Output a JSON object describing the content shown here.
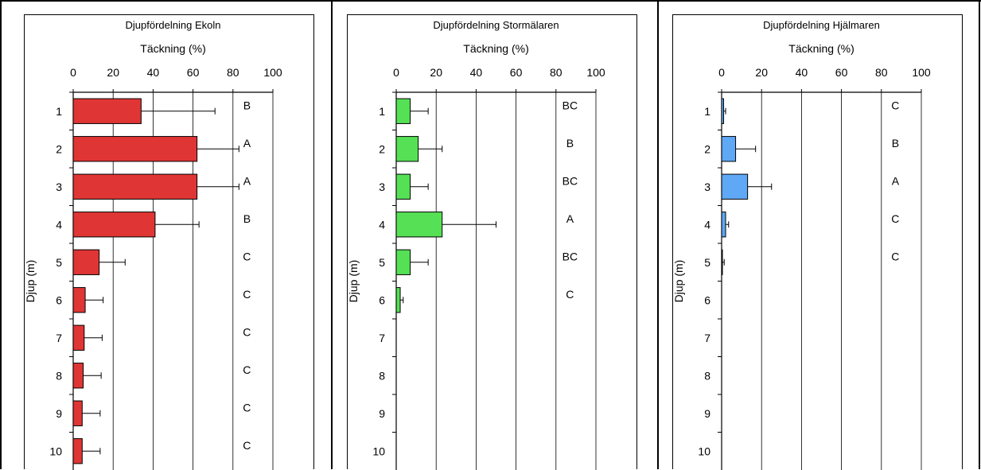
{
  "chart_data": [
    {
      "type": "bar",
      "orientation": "horizontal",
      "title": "Djupfördelning Ekoln",
      "xlabel": "Täckning (%)",
      "ylabel": "Djup (m)",
      "xlim": [
        0,
        100
      ],
      "x_ticks": [
        "0",
        "20",
        "40",
        "60",
        "80",
        "100"
      ],
      "categories": [
        "1",
        "2",
        "3",
        "4",
        "5",
        "6",
        "7",
        "8",
        "9",
        "10"
      ],
      "values": [
        34,
        62,
        62,
        41,
        13,
        6,
        5.5,
        5,
        4.5,
        4.5
      ],
      "errors": [
        37,
        21,
        21,
        22,
        13,
        9,
        9,
        9,
        9,
        9
      ],
      "letters": [
        "B",
        "A",
        "A",
        "B",
        "C",
        "C",
        "C",
        "C",
        "C",
        "C"
      ],
      "color": "#e03535",
      "grid": true
    },
    {
      "type": "bar",
      "orientation": "horizontal",
      "title": "Djupfördelning Stormälaren",
      "xlabel": "Täckning (%)",
      "ylabel": "Djup (m)",
      "xlim": [
        0,
        100
      ],
      "x_ticks": [
        "0",
        "20",
        "40",
        "60",
        "80",
        "100"
      ],
      "categories": [
        "1",
        "2",
        "3",
        "4",
        "5",
        "6",
        "7",
        "8",
        "9",
        "10"
      ],
      "values": [
        7,
        11,
        7,
        23,
        7,
        2,
        null,
        null,
        null,
        null
      ],
      "errors": [
        9,
        12,
        9,
        27,
        9,
        1.5,
        null,
        null,
        null,
        null
      ],
      "letters": [
        "BC",
        "B",
        "BC",
        "A",
        "BC",
        "C",
        "",
        "",
        "",
        ""
      ],
      "color": "#55e055",
      "grid": true
    },
    {
      "type": "bar",
      "orientation": "horizontal",
      "title": "Djupfördelning Hjälmaren",
      "xlabel": "Täckning (%)",
      "ylabel": "Djup (m)",
      "xlim": [
        0,
        100
      ],
      "x_ticks": [
        "0",
        "20",
        "40",
        "60",
        "80",
        "100"
      ],
      "categories": [
        "1",
        "2",
        "3",
        "4",
        "5",
        "6",
        "7",
        "8",
        "9",
        "10"
      ],
      "values": [
        1,
        7,
        13,
        2,
        0.3,
        null,
        null,
        null,
        null,
        null
      ],
      "errors": [
        1,
        10,
        12,
        1.5,
        1,
        null,
        null,
        null,
        null,
        null
      ],
      "letters": [
        "C",
        "B",
        "A",
        "C",
        "C",
        "",
        "",
        "",
        "",
        ""
      ],
      "color": "#5fa8f5",
      "grid": true
    }
  ]
}
